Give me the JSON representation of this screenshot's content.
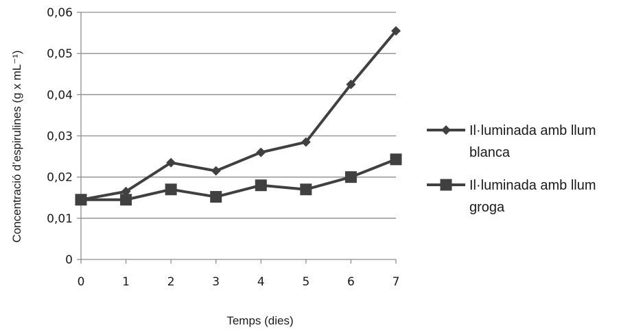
{
  "chart_data": {
    "type": "line",
    "title": "",
    "xlabel": "Temps (dies)",
    "ylabel": "Concentració d’espirulines (g x mL⁻¹)",
    "x": [
      0,
      1,
      2,
      3,
      4,
      5,
      6,
      7
    ],
    "x_tick_labels": [
      "0",
      "1",
      "2",
      "3",
      "4",
      "5",
      "6",
      "7"
    ],
    "y_tick_labels": [
      "0",
      "0,01",
      "0,02",
      "0,03",
      "0,04",
      "0,05",
      "0,06"
    ],
    "y_ticks": [
      0,
      0.01,
      0.02,
      0.03,
      0.04,
      0.05,
      0.06
    ],
    "xlim": [
      0,
      7
    ],
    "ylim": [
      0,
      0.06
    ],
    "grid": "horizontal",
    "legend_position": "right",
    "series": [
      {
        "name_lines": [
          "Il·luminada amb llum",
          "blanca"
        ],
        "marker": "diamond",
        "color": "#404040",
        "values": [
          0.0145,
          0.0165,
          0.0235,
          0.0215,
          0.026,
          0.0285,
          0.0425,
          0.0555
        ]
      },
      {
        "name_lines": [
          "Il·luminada amb llum",
          "groga"
        ],
        "marker": "square",
        "color": "#404040",
        "values": [
          0.0145,
          0.0145,
          0.017,
          0.0152,
          0.018,
          0.017,
          0.02,
          0.0243
        ]
      }
    ]
  }
}
